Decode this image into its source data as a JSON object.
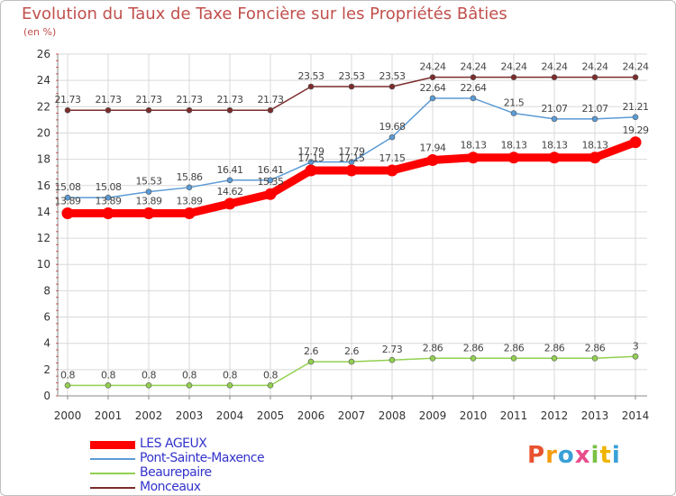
{
  "title": "Evolution du Taux de Taxe Foncière sur les Propriétés Bâties",
  "unit": "(en %)",
  "logo": "Proxiti",
  "chart_data": {
    "type": "line",
    "x": [
      "2000",
      "2001",
      "2002",
      "2003",
      "2004",
      "2005",
      "2006",
      "2007",
      "2008",
      "2009",
      "2010",
      "2011",
      "2012",
      "2013",
      "2014"
    ],
    "ylim": [
      0,
      26
    ],
    "yticks": [
      0,
      2,
      4,
      6,
      8,
      10,
      12,
      14,
      16,
      18,
      20,
      22,
      24,
      26
    ],
    "grid": true,
    "legend": "bottom-left",
    "series": [
      {
        "name": "LES AGEUX",
        "color": "#ff0000",
        "values": [
          13.89,
          13.89,
          13.89,
          13.89,
          14.62,
          15.35,
          17.15,
          17.15,
          17.15,
          17.94,
          18.13,
          18.13,
          18.13,
          18.13,
          19.29
        ]
      },
      {
        "name": "Pont-Sainte-Maxence",
        "color": "#5b9bd5",
        "values": [
          15.08,
          15.08,
          15.53,
          15.86,
          16.41,
          16.41,
          17.79,
          17.79,
          19.68,
          22.64,
          22.64,
          21.5,
          21.07,
          21.07,
          21.21
        ]
      },
      {
        "name": "Beaurepaire",
        "color": "#92d050",
        "values": [
          0.8,
          0.8,
          0.8,
          0.8,
          0.8,
          0.8,
          2.6,
          2.6,
          2.73,
          2.86,
          2.86,
          2.86,
          2.86,
          2.86,
          3
        ]
      },
      {
        "name": "Monceaux",
        "color": "#7b2c2c",
        "values": [
          21.73,
          21.73,
          21.73,
          21.73,
          21.73,
          21.73,
          23.53,
          23.53,
          23.53,
          24.24,
          24.24,
          24.24,
          24.24,
          24.24,
          24.24
        ]
      }
    ]
  }
}
